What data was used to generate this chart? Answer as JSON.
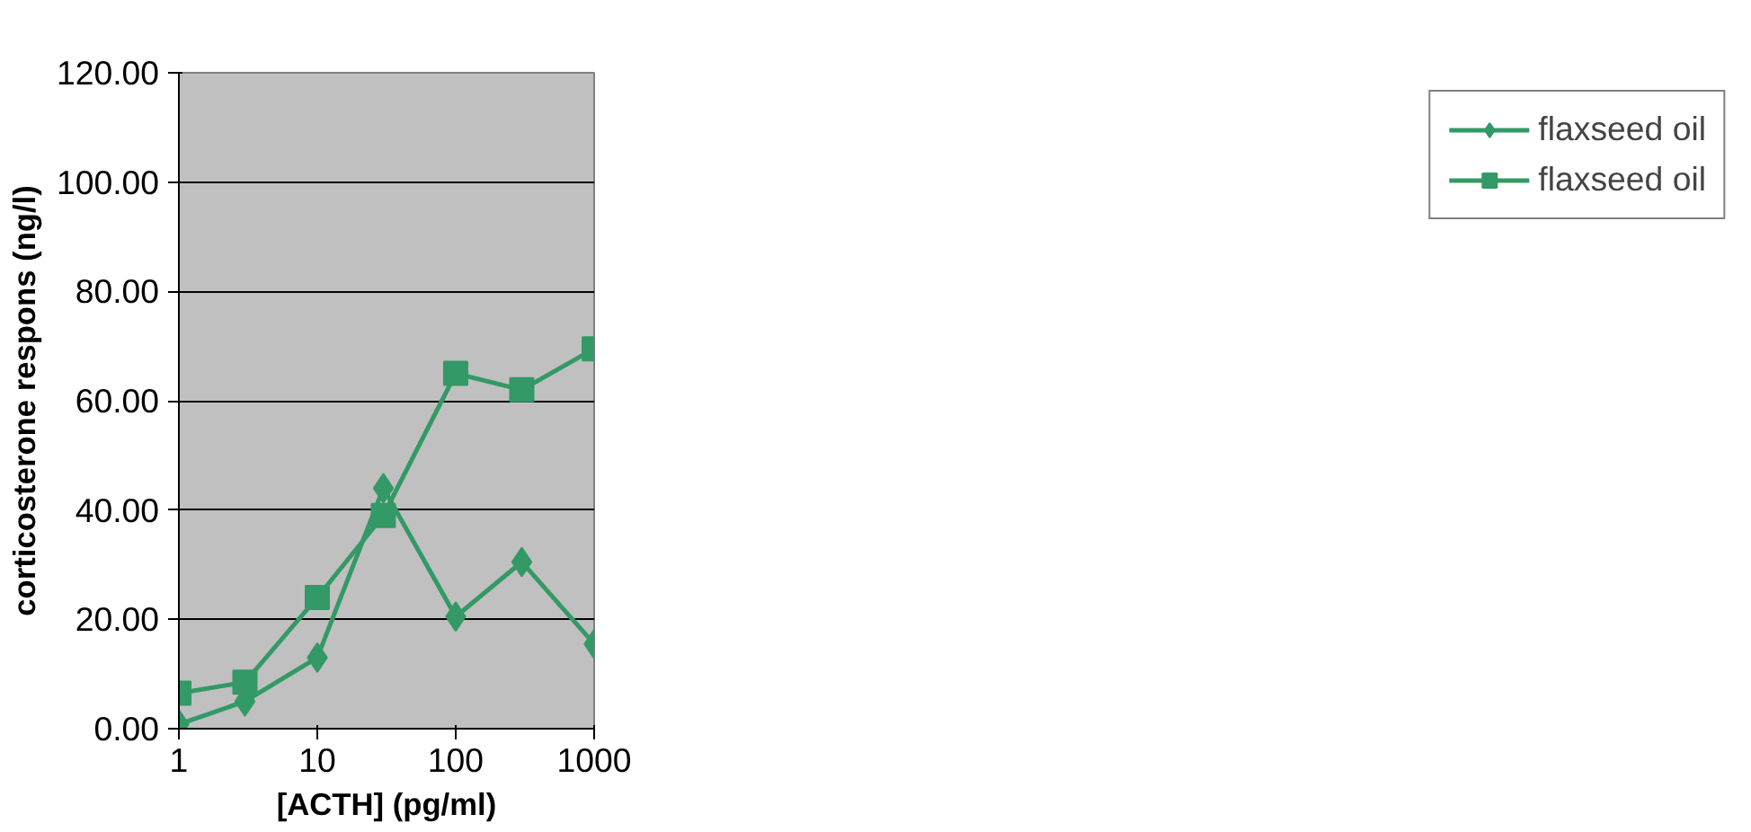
{
  "chart_data": {
    "type": "line",
    "xlabel": "[ACTH] (pg/ml)",
    "ylabel": "corticosterone respons (ng/l)",
    "log": "x",
    "xlim": [
      1,
      1000
    ],
    "xticks": [
      1,
      10,
      100,
      1000
    ],
    "ylim": [
      0,
      120
    ],
    "yticks": [
      {
        "value": 0,
        "label": "0.00"
      },
      {
        "value": 20,
        "label": "20.00"
      },
      {
        "value": 40,
        "label": "40.00"
      },
      {
        "value": 60,
        "label": "60.00"
      },
      {
        "value": 80,
        "label": "80.00"
      },
      {
        "value": 100,
        "label": "100.00"
      },
      {
        "value": 120,
        "label": "120.00"
      }
    ],
    "x": [
      1,
      3,
      10,
      30,
      100,
      300,
      1000
    ],
    "grid": "y",
    "legend": "right",
    "line_style": "solid",
    "series": [
      {
        "name": "flaxseed oil",
        "color": "#339966",
        "marker": "diamond",
        "values": [
          0.8,
          5,
          13,
          44,
          20.5,
          30.5,
          15.5
        ]
      },
      {
        "name": "flaxseed oil",
        "color": "#339966",
        "marker": "square",
        "values": [
          6.5,
          8.5,
          24,
          39,
          65,
          62,
          69.5
        ]
      }
    ]
  }
}
